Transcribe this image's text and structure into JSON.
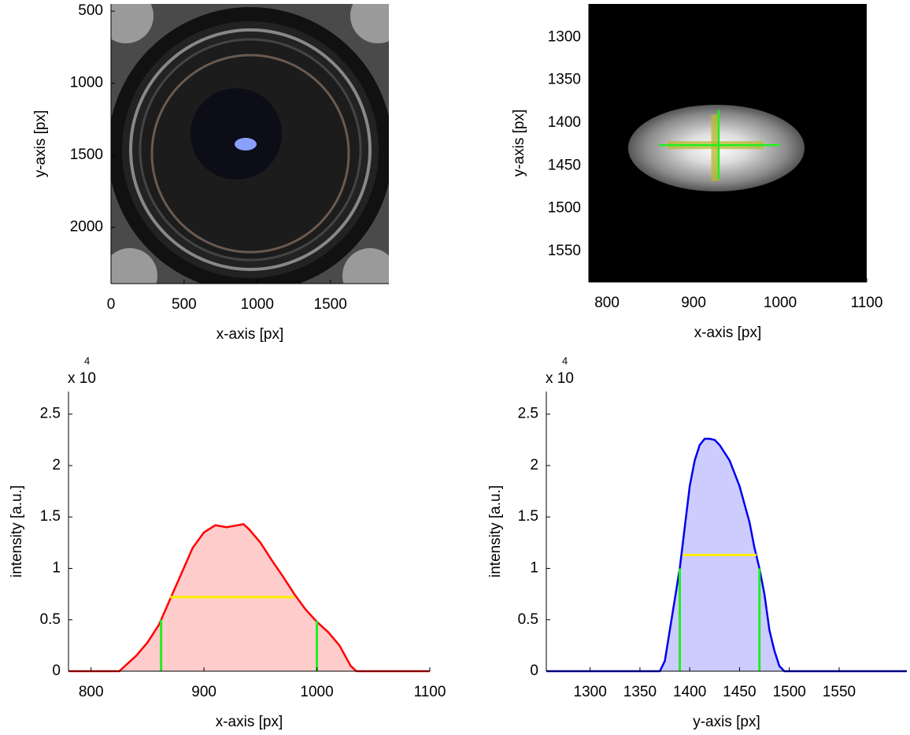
{
  "chart_data": [
    {
      "type": "image",
      "xlabel": "x-axis [px]",
      "ylabel": "y-axis [px]",
      "xlim": [
        0,
        1900
      ],
      "ylim": [
        450,
        2390
      ],
      "reverse_y": true,
      "xticks": [
        0,
        500,
        1000,
        1500
      ],
      "yticks": [
        500,
        1000,
        1500,
        2000
      ]
    },
    {
      "type": "image",
      "xlabel": "x-axis [px]",
      "ylabel": "y-axis [px]",
      "xlim": [
        779,
        1100
      ],
      "ylim": [
        1261,
        1586
      ],
      "reverse_y": true,
      "xticks": [
        800,
        900,
        1000,
        1100
      ],
      "yticks": [
        1300,
        1350,
        1400,
        1450,
        1500,
        1550
      ],
      "fwhm_cross": {
        "x_center": 925,
        "y_center": 1426,
        "x_span": [
          870,
          981
        ],
        "y_span": [
          1390,
          1468
        ],
        "color": "#b8b830"
      },
      "crosshair": {
        "x_center": 929,
        "y_center": 1426,
        "x_span": [
          860,
          1000
        ],
        "y_span": [
          1385,
          1466
        ],
        "color": "#22ee22"
      }
    },
    {
      "type": "line",
      "xlabel": "x-axis [px]",
      "ylabel": "intensity [a.u.]",
      "exponent_base": "x 10",
      "exponent": "4",
      "xlim": [
        780,
        1100
      ],
      "ylim": [
        0,
        2.72
      ],
      "xticks": [
        800,
        900,
        1000,
        1100
      ],
      "yticks": [
        0,
        0.5,
        1,
        1.5,
        2,
        2.5
      ],
      "x": [
        780,
        825,
        830,
        840,
        850,
        860,
        870,
        880,
        890,
        900,
        910,
        920,
        930,
        935,
        940,
        950,
        960,
        970,
        980,
        990,
        1000,
        1010,
        1020,
        1030,
        1035,
        1100
      ],
      "series": [
        {
          "color": "#ff0000",
          "fill": "#ffcccc",
          "values": [
            0,
            0,
            0.05,
            0.15,
            0.28,
            0.45,
            0.7,
            0.95,
            1.2,
            1.35,
            1.42,
            1.4,
            1.42,
            1.43,
            1.38,
            1.25,
            1.08,
            0.92,
            0.75,
            0.6,
            0.48,
            0.38,
            0.25,
            0.05,
            0,
            0
          ]
        }
      ],
      "fwhm": {
        "level": 0.72,
        "x_span": [
          870,
          980
        ],
        "color": "#ffee00"
      },
      "edges": {
        "x": [
          862,
          1000
        ],
        "values": [
          0.5,
          0.49
        ],
        "color": "#22ee22"
      }
    },
    {
      "type": "line",
      "xlabel": "y-axis [px]",
      "ylabel": "intensity [a.u.]",
      "exponent_base": "x 10",
      "exponent": "4",
      "xlim": [
        1256,
        1618
      ],
      "ylim": [
        0,
        2.72
      ],
      "xticks": [
        1300,
        1350,
        1400,
        1450,
        1500,
        1550
      ],
      "yticks": [
        0,
        0.5,
        1,
        1.5,
        2,
        2.5
      ],
      "x": [
        1256,
        1370,
        1375,
        1380,
        1385,
        1390,
        1395,
        1400,
        1405,
        1410,
        1415,
        1420,
        1425,
        1430,
        1440,
        1450,
        1460,
        1465,
        1470,
        1475,
        1480,
        1485,
        1490,
        1495,
        1618
      ],
      "series": [
        {
          "color": "#0000ee",
          "fill": "#ccccff",
          "values": [
            0,
            0,
            0.1,
            0.4,
            0.7,
            1.0,
            1.4,
            1.8,
            2.05,
            2.2,
            2.26,
            2.26,
            2.25,
            2.2,
            2.05,
            1.8,
            1.45,
            1.2,
            1.0,
            0.75,
            0.4,
            0.2,
            0.05,
            0,
            0
          ]
        }
      ],
      "fwhm": {
        "level": 1.13,
        "x_span": [
          1393,
          1467
        ],
        "color": "#ffee00"
      },
      "edges": {
        "x": [
          1390,
          1470
        ],
        "values": [
          1.0,
          1.0
        ],
        "color": "#22ee22"
      }
    }
  ]
}
